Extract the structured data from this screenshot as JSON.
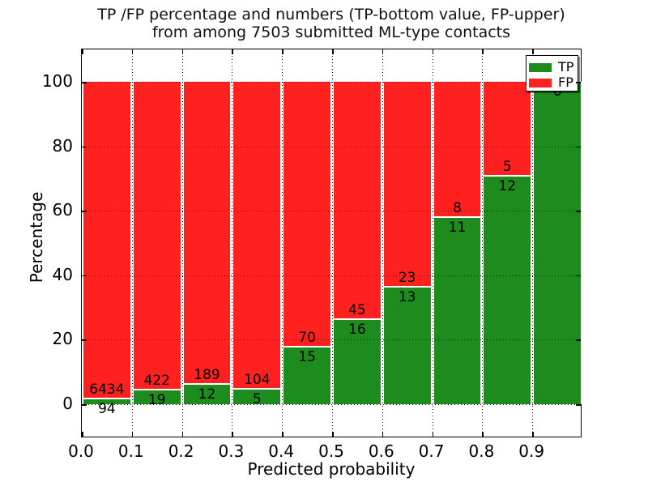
{
  "chart_data": {
    "type": "bar",
    "stacked": true,
    "title_line1": "TP /FP percentage and numbers (TP-bottom value, FP-upper)",
    "title_line2": "from among 7503 submitted ML-type contacts",
    "xlabel": "Predicted probability",
    "ylabel": "Percentage",
    "x_tick_labels": [
      "0.0",
      "0.1",
      "0.2",
      "0.3",
      "0.4",
      "0.5",
      "0.6",
      "0.7",
      "0.8",
      "0.9"
    ],
    "y_tick_labels": [
      "0",
      "20",
      "40",
      "60",
      "80",
      "100"
    ],
    "y_tick_values": [
      0,
      20,
      40,
      60,
      80,
      100
    ],
    "xlim": [
      0.0,
      1.0
    ],
    "ylim_display": [
      -10.5,
      110
    ],
    "grid": "dotted, drawn over bars",
    "legend_position": "upper right",
    "series_note": "Each bin: TP count (green, bottom) and FP count (red, top); bar height = TP/(TP+FP) in percent; labels show raw counts (FP above boundary, TP below)",
    "total_contacts": "7503",
    "bins": [
      {
        "range_start": "0.0",
        "tp": 94,
        "fp": 6434
      },
      {
        "range_start": "0.1",
        "tp": 19,
        "fp": 422
      },
      {
        "range_start": "0.2",
        "tp": 12,
        "fp": 189
      },
      {
        "range_start": "0.3",
        "tp": 5,
        "fp": 104
      },
      {
        "range_start": "0.4",
        "tp": 15,
        "fp": 70
      },
      {
        "range_start": "0.5",
        "tp": 16,
        "fp": 45
      },
      {
        "range_start": "0.6",
        "tp": 13,
        "fp": 23
      },
      {
        "range_start": "0.7",
        "tp": 11,
        "fp": 8
      },
      {
        "range_start": "0.8",
        "tp": 12,
        "fp": 5
      },
      {
        "range_start": "0.9",
        "tp": 6,
        "fp": 0
      }
    ],
    "colors": {
      "tp": "#1e8b1e",
      "fp": "#ff2020",
      "bar_edge": "#ffffff",
      "grid": "#000000"
    },
    "legend": [
      {
        "label": "TP",
        "color": "#1e8b1e"
      },
      {
        "label": "FP",
        "color": "#ff2020"
      }
    ]
  }
}
